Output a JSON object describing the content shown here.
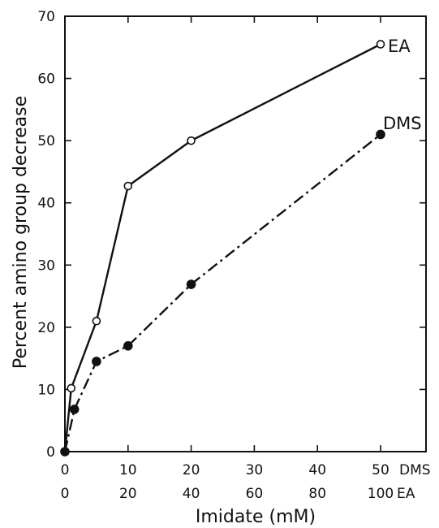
{
  "chart_data": {
    "type": "line",
    "title": "",
    "ylabel": "Percent amino group decrease",
    "xlabel": "Imidate (mM)",
    "ylim": [
      0,
      70
    ],
    "y_ticks": [
      "0",
      "10",
      "20",
      "30",
      "40",
      "50",
      "60",
      "70"
    ],
    "x_axes": [
      {
        "name": "DMS",
        "ticks": [
          "0",
          "10",
          "20",
          "30",
          "40",
          "50"
        ],
        "suffix": "DMS",
        "range": [
          0,
          50
        ]
      },
      {
        "name": "EA",
        "ticks": [
          "0",
          "20",
          "40",
          "60",
          "80",
          "100"
        ],
        "suffix": "EA",
        "range": [
          0,
          100
        ]
      }
    ],
    "grid": false,
    "series": [
      {
        "name": "EA",
        "x_axis": "EA",
        "marker": "open-circle",
        "line": "solid",
        "points": [
          {
            "x": 0,
            "y": 0
          },
          {
            "x": 2,
            "y": 10.2
          },
          {
            "x": 10,
            "y": 21
          },
          {
            "x": 20,
            "y": 42.7
          },
          {
            "x": 40,
            "y": 50
          },
          {
            "x": 100,
            "y": 65.5
          }
        ]
      },
      {
        "name": "DMS",
        "x_axis": "DMS",
        "marker": "filled-circle",
        "line": "dash-dot",
        "points": [
          {
            "x": 0,
            "y": 0
          },
          {
            "x": 1.5,
            "y": 6.8
          },
          {
            "x": 5,
            "y": 14.5
          },
          {
            "x": 10,
            "y": 17
          },
          {
            "x": 20,
            "y": 26.9
          },
          {
            "x": 50,
            "y": 51
          }
        ]
      }
    ]
  }
}
